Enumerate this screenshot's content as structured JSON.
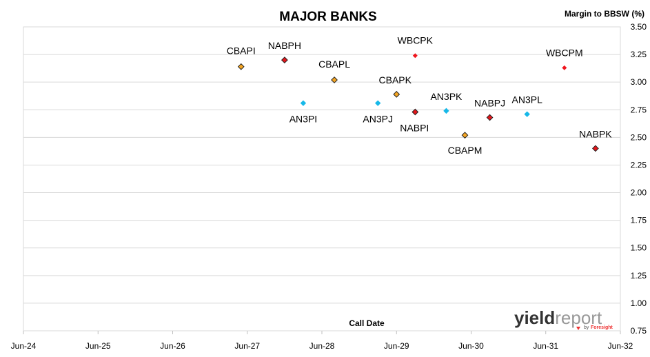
{
  "chart_data": {
    "type": "scatter",
    "title": "MAJOR BANKS",
    "ylabel": "Margin to BBSW (%)",
    "xlabel": "Call Date",
    "ylim": [
      0.75,
      3.5
    ],
    "y_ticks": [
      "0.75",
      "1.00",
      "1.25",
      "1.50",
      "1.75",
      "2.00",
      "2.25",
      "2.50",
      "2.75",
      "3.00",
      "3.25",
      "3.50"
    ],
    "xlim": [
      "2024-06",
      "2032-06"
    ],
    "x_ticks": [
      "Jun-24",
      "Jun-25",
      "Jun-26",
      "Jun-27",
      "Jun-28",
      "Jun-29",
      "Jun-30",
      "Jun-31",
      "Jun-32"
    ],
    "grid": "horizontal",
    "series": [
      {
        "color": "#F5A623",
        "points": [
          {
            "label": "CBAPI",
            "x": "2027-05",
            "y": 3.14
          },
          {
            "label": "CBAPL",
            "x": "2028-08",
            "y": 3.02
          },
          {
            "label": "CBAPK",
            "x": "2029-06",
            "y": 2.89
          },
          {
            "label": "CBAPM",
            "x": "2030-05",
            "y": 2.52
          }
        ]
      },
      {
        "color": "#E3161B",
        "points": [
          {
            "label": "NABPH",
            "x": "2027-12",
            "y": 3.2
          },
          {
            "label": "NABPI",
            "x": "2029-09",
            "y": 2.73
          },
          {
            "label": "NABPJ",
            "x": "2030-09",
            "y": 2.68
          },
          {
            "label": "NABPK",
            "x": "2032-02",
            "y": 2.4
          }
        ]
      },
      {
        "color": "#16B8E8",
        "points": [
          {
            "label": "AN3PI",
            "x": "2028-03",
            "y": 2.81
          },
          {
            "label": "AN3PJ",
            "x": "2029-03",
            "y": 2.81
          },
          {
            "label": "AN3PK",
            "x": "2030-02",
            "y": 2.74
          },
          {
            "label": "AN3PL",
            "x": "2031-03",
            "y": 2.71
          }
        ]
      },
      {
        "color": "#F0161E",
        "marker": "small",
        "points": [
          {
            "label": "WBCPK",
            "x": "2029-09",
            "y": 3.24
          },
          {
            "label": "WBCPM",
            "x": "2031-09",
            "y": 3.13
          }
        ]
      }
    ]
  },
  "watermark": {
    "brand_yield": "yield",
    "brand_report": "report",
    "by": "by",
    "foresight": "Foresight"
  }
}
